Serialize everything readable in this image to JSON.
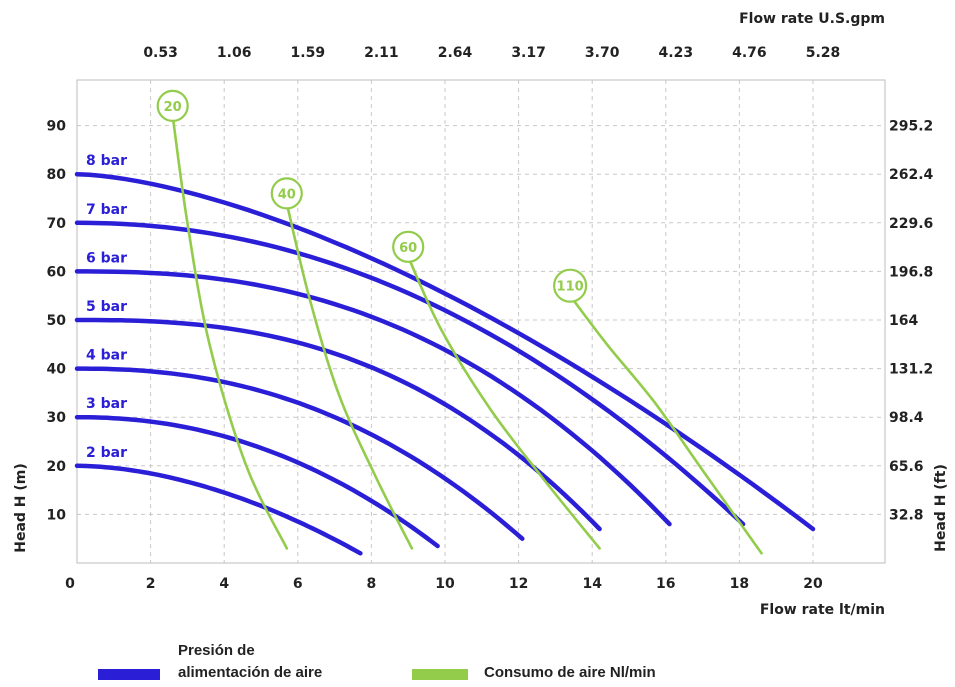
{
  "chart_data": {
    "type": "line",
    "x_axis": {
      "label": "Flow rate  lt/min",
      "range": [
        0,
        22
      ],
      "ticks": [
        0,
        2,
        4,
        6,
        8,
        10,
        12,
        14,
        16,
        18,
        20
      ]
    },
    "y_axis": {
      "label": "Head H (m)",
      "range": [
        0,
        100
      ],
      "ticks": [
        10,
        20,
        30,
        40,
        50,
        60,
        70,
        80,
        90
      ]
    },
    "top_axis": {
      "label": "Flow rate U.S.gpm",
      "ticks": [
        {
          "x": 2,
          "label": "0.53"
        },
        {
          "x": 4,
          "label": "1.06"
        },
        {
          "x": 6,
          "label": "1.59"
        },
        {
          "x": 8,
          "label": "2.11"
        },
        {
          "x": 10,
          "label": "2.64"
        },
        {
          "x": 12,
          "label": "3.17"
        },
        {
          "x": 14,
          "label": "3.70"
        },
        {
          "x": 16,
          "label": "4.23"
        },
        {
          "x": 18,
          "label": "4.76"
        },
        {
          "x": 20,
          "label": "5.28"
        }
      ]
    },
    "right_axis": {
      "label": "Head H (ft)",
      "ticks": [
        {
          "y": 10,
          "label": "32.8"
        },
        {
          "y": 20,
          "label": "65.6"
        },
        {
          "y": 30,
          "label": "98.4"
        },
        {
          "y": 40,
          "label": "131.2"
        },
        {
          "y": 50,
          "label": "164"
        },
        {
          "y": 60,
          "label": "196.8"
        },
        {
          "y": 70,
          "label": "229.6"
        },
        {
          "y": 80,
          "label": "262.4"
        },
        {
          "y": 90,
          "label": "295.2"
        }
      ]
    },
    "grid": true,
    "pressure_curves": [
      {
        "name": "2 bar",
        "shutoff_head": 20,
        "max_flow": 7.7,
        "end_head": 2
      },
      {
        "name": "3 bar",
        "shutoff_head": 30,
        "max_flow": 9.8,
        "end_head": 3.5
      },
      {
        "name": "4 bar",
        "shutoff_head": 40,
        "max_flow": 12.1,
        "end_head": 5
      },
      {
        "name": "5 bar",
        "shutoff_head": 50,
        "max_flow": 14.2,
        "end_head": 7
      },
      {
        "name": "6 bar",
        "shutoff_head": 60,
        "max_flow": 16.1,
        "end_head": 8
      },
      {
        "name": "7 bar",
        "shutoff_head": 70,
        "max_flow": 18.1,
        "end_head": 8
      },
      {
        "name": "8 bar",
        "shutoff_head": 80,
        "max_flow": 20.0,
        "end_head": 7
      }
    ],
    "air_consumption_curves": [
      {
        "name": "20",
        "points": [
          [
            2.6,
            92
          ],
          [
            3.0,
            70
          ],
          [
            3.6,
            45
          ],
          [
            4.6,
            20
          ],
          [
            5.7,
            3
          ]
        ]
      },
      {
        "name": "40",
        "points": [
          [
            5.7,
            74
          ],
          [
            6.3,
            55
          ],
          [
            7.1,
            35
          ],
          [
            8.1,
            18
          ],
          [
            9.1,
            3
          ]
        ]
      },
      {
        "name": "60",
        "points": [
          [
            9.0,
            63
          ],
          [
            9.9,
            48
          ],
          [
            11.2,
            32
          ],
          [
            12.6,
            18
          ],
          [
            14.2,
            3
          ]
        ]
      },
      {
        "name": "110",
        "points": [
          [
            13.4,
            55
          ],
          [
            14.4,
            45
          ],
          [
            15.7,
            33
          ],
          [
            17.1,
            18
          ],
          [
            18.6,
            2
          ]
        ]
      }
    ],
    "colors": {
      "pressure": "#2a1fd6",
      "air": "#92cc4a"
    }
  },
  "legend": {
    "pressure_line1": "Presión de",
    "pressure_line2": "alimentación de aire",
    "air": "Consumo de aire Nl/min"
  }
}
